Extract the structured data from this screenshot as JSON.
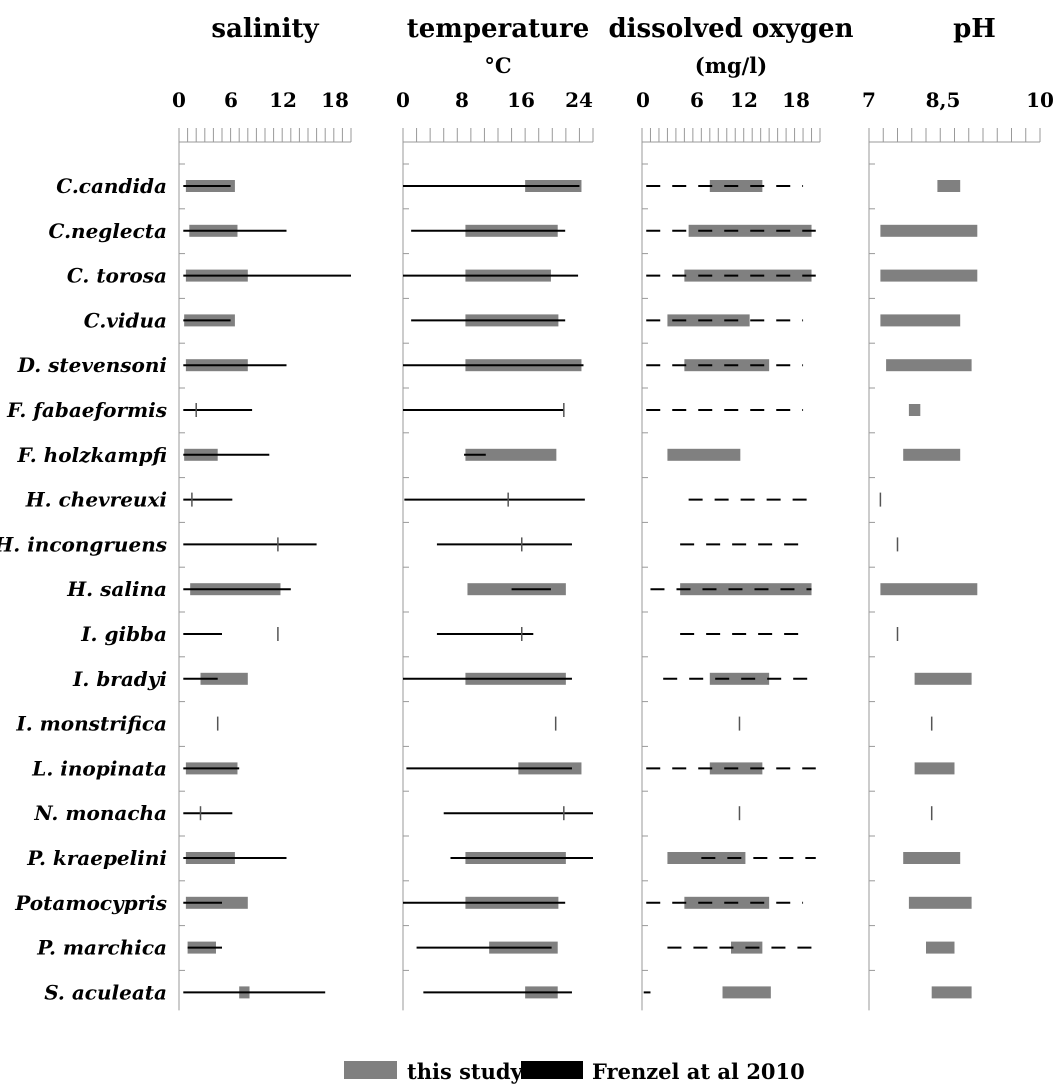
{
  "chart_data": {
    "type": "bar",
    "description_kind": "range-chart panels",
    "species": [
      "C.candida",
      "C.neglecta",
      "C. torosa",
      "C.vidua",
      "D. stevensoni",
      "F. fabaeformis",
      "F. holzkampfi",
      "H. chevreuxi",
      "H. incongruens",
      "H. salina",
      "I. gibba",
      "I. bradyi",
      "I. monstrifica",
      "L. inopinata",
      "N. monacha",
      "P. kraepelini",
      "Potamocypris",
      "P. marchica",
      "S. aculeata"
    ],
    "legend": {
      "position": "bottom",
      "items": [
        {
          "name": "this study",
          "color": "#808080"
        },
        {
          "name": "Frenzel at al 2010",
          "color": "#000000"
        }
      ]
    },
    "panels": [
      {
        "title": "salinity",
        "subtitle": "",
        "xlim": [
          0,
          20
        ],
        "ticks": [
          "0",
          "6",
          "12",
          "18"
        ],
        "tick_values": [
          0,
          6,
          12,
          18
        ],
        "minor_step": 1,
        "frenzel_style": "solid",
        "study": [
          [
            0.8,
            6.5
          ],
          [
            1.2,
            6.8
          ],
          [
            0.8,
            8
          ],
          [
            0.6,
            6.5
          ],
          [
            0.8,
            8
          ],
          null,
          [
            0.6,
            4.5
          ],
          null,
          null,
          [
            1.3,
            11.8
          ],
          null,
          [
            2.5,
            8
          ],
          null,
          [
            0.8,
            6.8
          ],
          null,
          [
            0.8,
            6.5
          ],
          [
            0.8,
            8
          ],
          [
            1,
            4.3
          ],
          [
            7,
            8.2
          ]
        ],
        "frenzel": [
          [
            0.5,
            6
          ],
          [
            0.5,
            12.5
          ],
          [
            0.5,
            20
          ],
          [
            0.5,
            6
          ],
          [
            0.5,
            12.5
          ],
          [
            0.5,
            8.5
          ],
          [
            0.5,
            10.5
          ],
          [
            0.5,
            6.2
          ],
          [
            0.5,
            16
          ],
          [
            0.5,
            13
          ],
          [
            0.5,
            5
          ],
          [
            0.5,
            4.5
          ],
          null,
          [
            0.5,
            7
          ],
          [
            0.5,
            6.2
          ],
          [
            0.5,
            12.5
          ],
          [
            0.5,
            5
          ],
          [
            1,
            5
          ],
          [
            0.5,
            17
          ]
        ],
        "points": [
          null,
          null,
          null,
          null,
          null,
          2,
          null,
          1.5,
          11.5,
          null,
          11.5,
          null,
          4.5,
          null,
          2.5,
          null,
          null,
          null,
          null
        ]
      },
      {
        "title": "temperature",
        "subtitle": "°C",
        "xlim": [
          0,
          28
        ],
        "ticks": [
          "0",
          "8",
          "16",
          "24"
        ],
        "tick_values": [
          0,
          8,
          16,
          24
        ],
        "minor_step": 2,
        "frenzel_style": "solid",
        "study": [
          [
            18,
            26.3
          ],
          [
            9.2,
            22.8
          ],
          [
            9.2,
            21.8
          ],
          [
            9.2,
            22.9
          ],
          [
            9.2,
            26.3
          ],
          null,
          [
            9.2,
            22.6
          ],
          null,
          null,
          [
            9.5,
            24
          ],
          null,
          [
            9.2,
            24
          ],
          null,
          [
            17,
            26.3
          ],
          null,
          [
            9.2,
            24
          ],
          [
            9.2,
            22.9
          ],
          [
            12.7,
            22.8
          ],
          [
            18,
            22.8
          ]
        ],
        "frenzel": [
          [
            0,
            26
          ],
          [
            1.2,
            23.9
          ],
          [
            0,
            25.8
          ],
          [
            1.2,
            23.9
          ],
          [
            0,
            26.6
          ],
          [
            0,
            23.8
          ],
          [
            9,
            12.2
          ],
          [
            0.2,
            26.8
          ],
          [
            5,
            24.9
          ],
          [
            16,
            21.8
          ],
          [
            5,
            19.2
          ],
          [
            0,
            24.9
          ],
          null,
          [
            0.5,
            24.9
          ],
          [
            6,
            28
          ],
          [
            7,
            28
          ],
          [
            0,
            23.9
          ],
          [
            2,
            21.9
          ],
          [
            3,
            24.9
          ]
        ],
        "points": [
          null,
          null,
          null,
          null,
          null,
          23.7,
          null,
          15.5,
          17.5,
          null,
          17.5,
          null,
          22.5,
          null,
          23.7,
          null,
          null,
          null,
          null
        ]
      },
      {
        "title": "dissolved oxygen",
        "subtitle": "(mg/l)",
        "xlim": [
          0,
          21
        ],
        "ticks": [
          "0",
          "6",
          "12",
          "18"
        ],
        "tick_values": [
          0,
          6,
          12,
          18
        ],
        "minor_step": 1,
        "frenzel_style": "dashed",
        "study": [
          [
            8,
            14.2
          ],
          [
            5.5,
            20
          ],
          [
            5,
            20
          ],
          [
            3,
            12.7
          ],
          [
            5,
            15
          ],
          null,
          [
            3,
            11.6
          ],
          null,
          null,
          [
            4.5,
            20
          ],
          null,
          [
            8,
            15
          ],
          null,
          [
            8,
            14.2
          ],
          null,
          [
            3,
            12.2
          ],
          [
            5,
            15
          ],
          [
            10.5,
            14.2
          ],
          [
            9.5,
            15.2
          ]
        ],
        "frenzel": [
          [
            0.5,
            19
          ],
          [
            0.5,
            20.5
          ],
          [
            0.5,
            20.5
          ],
          [
            0.5,
            19
          ],
          [
            0.5,
            19
          ],
          [
            0.5,
            19
          ],
          null,
          [
            5.5,
            20
          ],
          [
            4.5,
            19
          ],
          [
            1,
            20
          ],
          [
            4.5,
            19
          ],
          [
            2.5,
            20
          ],
          null,
          [
            0.5,
            20.5
          ],
          null,
          [
            7,
            20.5
          ],
          [
            0.5,
            19
          ],
          [
            3,
            20.5
          ],
          [
            0.2,
            1
          ]
        ],
        "points": [
          null,
          null,
          null,
          null,
          null,
          null,
          null,
          null,
          null,
          null,
          null,
          null,
          11.5,
          null,
          11.5,
          null,
          null,
          null,
          null
        ]
      },
      {
        "title": "pH",
        "subtitle": "",
        "xlim": [
          7,
          10
        ],
        "ticks": [
          "7",
          "8,5",
          "10"
        ],
        "tick_values": [
          7,
          8.5,
          10
        ],
        "minor_step": 0.25,
        "frenzel_style": "none",
        "study": [
          [
            8.2,
            8.6
          ],
          [
            7.2,
            8.9
          ],
          [
            7.2,
            8.9
          ],
          [
            7.2,
            8.6
          ],
          [
            7.3,
            8.8
          ],
          [
            7.7,
            7.9
          ],
          [
            7.6,
            8.6
          ],
          null,
          null,
          [
            7.2,
            8.9
          ],
          null,
          [
            7.8,
            8.8
          ],
          null,
          [
            7.8,
            8.5
          ],
          null,
          [
            7.6,
            8.6
          ],
          [
            7.7,
            8.8
          ],
          [
            8,
            8.5
          ],
          [
            8.1,
            8.8
          ]
        ],
        "frenzel": [],
        "points": [
          null,
          null,
          null,
          null,
          null,
          null,
          null,
          7.2,
          7.5,
          null,
          7.5,
          null,
          8.1,
          null,
          8.1,
          null,
          null,
          null,
          null
        ]
      }
    ]
  }
}
